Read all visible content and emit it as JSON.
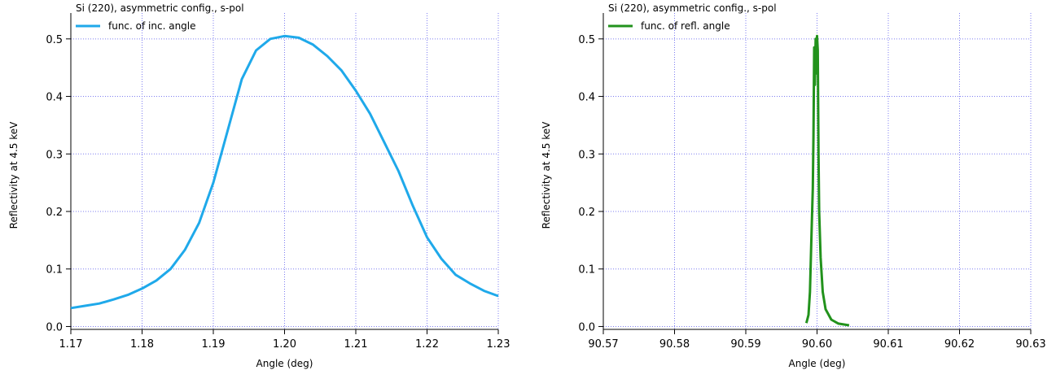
{
  "chart_data": [
    {
      "type": "line",
      "legend_title": "Si (220), asymmetric config., s-pol",
      "xlabel": "Angle (deg)",
      "ylabel": "Reflectivity at 4.5 keV",
      "xlim": [
        1.17,
        1.23
      ],
      "ylim": [
        -0.005,
        0.545
      ],
      "xticks": [
        "1.17",
        "1.18",
        "1.19",
        "1.20",
        "1.21",
        "1.22",
        "1.23"
      ],
      "yticks": [
        "0.0",
        "0.1",
        "0.2",
        "0.3",
        "0.4",
        "0.5"
      ],
      "grid": true,
      "legend_position": "top-left",
      "series": [
        {
          "name": "func. of inc. angle",
          "color": "#1fa9ea",
          "x": [
            1.17,
            1.172,
            1.174,
            1.176,
            1.178,
            1.18,
            1.182,
            1.184,
            1.186,
            1.188,
            1.19,
            1.192,
            1.194,
            1.196,
            1.198,
            1.2,
            1.202,
            1.204,
            1.206,
            1.208,
            1.21,
            1.212,
            1.214,
            1.216,
            1.218,
            1.22,
            1.222,
            1.224,
            1.226,
            1.228,
            1.23
          ],
          "y": [
            0.032,
            0.036,
            0.04,
            0.047,
            0.055,
            0.066,
            0.08,
            0.1,
            0.133,
            0.18,
            0.25,
            0.34,
            0.43,
            0.48,
            0.5,
            0.505,
            0.502,
            0.49,
            0.47,
            0.445,
            0.41,
            0.37,
            0.32,
            0.27,
            0.21,
            0.155,
            0.118,
            0.09,
            0.075,
            0.062,
            0.053
          ]
        }
      ]
    },
    {
      "type": "line",
      "legend_title": "Si (220), asymmetric config., s-pol",
      "xlabel": "Angle (deg)",
      "ylabel": "Reflectivity at 4.5 keV",
      "xlim": [
        90.57,
        90.63
      ],
      "ylim": [
        -0.005,
        0.545
      ],
      "xticks": [
        "90.57",
        "90.58",
        "90.59",
        "90.60",
        "90.61",
        "90.62",
        "90.63"
      ],
      "yticks": [
        "0.0",
        "0.1",
        "0.2",
        "0.3",
        "0.4",
        "0.5"
      ],
      "grid": true,
      "legend_position": "top-left",
      "series": [
        {
          "name": "func. of refl. angle",
          "color": "#22921c",
          "x": [
            90.5985,
            90.5988,
            90.599,
            90.5992,
            90.5994,
            90.5995,
            90.5996,
            90.5997,
            90.5998,
            90.5999,
            90.6,
            90.6001,
            90.6002,
            90.6003,
            90.6005,
            90.6008,
            90.6012,
            90.602,
            90.603,
            90.6045
          ],
          "y": [
            0.006,
            0.02,
            0.06,
            0.15,
            0.24,
            0.33,
            0.485,
            0.42,
            0.5,
            0.44,
            0.505,
            0.48,
            0.3,
            0.2,
            0.12,
            0.06,
            0.03,
            0.012,
            0.005,
            0.002
          ]
        }
      ]
    }
  ]
}
